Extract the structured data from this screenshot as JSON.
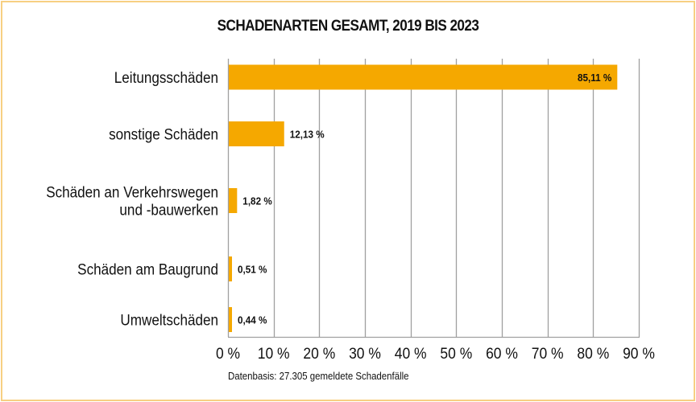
{
  "chart_data": {
    "type": "bar",
    "orientation": "horizontal",
    "title": "SCHADENARTEN GESAMT, 2019 BIS 2023",
    "categories": [
      [
        "Leitungsschäden"
      ],
      [
        "sonstige Schäden"
      ],
      [
        "Schäden an Verkehrswegen",
        "und -bauwerken"
      ],
      [
        "Schäden am Baugrund"
      ],
      [
        "Umweltschäden"
      ]
    ],
    "values": [
      85.11,
      12.13,
      1.82,
      0.51,
      0.44
    ],
    "data_labels": [
      "85,11 %",
      "12,13 %",
      "1,82 %",
      "0,51 %",
      "0,44 %"
    ],
    "xlim": [
      0,
      90
    ],
    "xticks": [
      0,
      10,
      20,
      30,
      40,
      50,
      60,
      70,
      80,
      90
    ],
    "xtick_labels": [
      "0 %",
      "10 %",
      "20 %",
      "30 %",
      "40 %",
      "50 %",
      "60 %",
      "70 %",
      "80 %",
      "90 %"
    ],
    "xlabel": "",
    "ylabel": "",
    "grid": "vertical",
    "legend": "none",
    "bar_color": "#f5a800",
    "grid_color": "#a0a0a0",
    "footnote": "Datenbasis: 27.305 gemeldete Schadenfälle"
  }
}
